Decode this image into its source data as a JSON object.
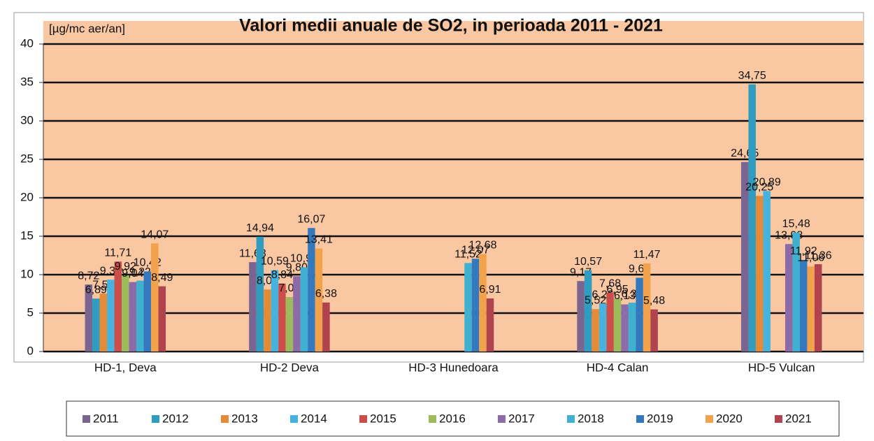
{
  "chart_data": {
    "type": "bar",
    "title": "Valori medii anuale de SO2, in perioada 2011 - 2021",
    "y_label": "[µg/mc aer/an]",
    "categories": [
      "HD-1, Deva",
      "HD-2 Deva",
      "HD-3 Hunedoara",
      "HD-4 Calan",
      "HD-5 Vulcan"
    ],
    "ylim": [
      0,
      40
    ],
    "yticks": [
      0,
      5,
      10,
      15,
      20,
      25,
      30,
      35,
      40
    ],
    "grid": true,
    "legend": "bottom",
    "series": [
      {
        "name": "2011",
        "color": "#7a6590",
        "values": [
          8.72,
          11.63,
          null,
          9.17,
          24.65
        ],
        "value_labels": [
          "8,72",
          "11,63",
          null,
          "9,17",
          "24,65"
        ]
      },
      {
        "name": "2012",
        "color": "#2f9cc0",
        "values": [
          6.89,
          14.94,
          null,
          10.57,
          34.75
        ],
        "value_labels": [
          "6,89",
          "14,94",
          null,
          "10,57",
          "34,75"
        ]
      },
      {
        "name": "2013",
        "color": "#e58a37",
        "values": [
          7.53,
          8.07,
          null,
          5.52,
          20.25
        ],
        "value_labels": [
          "7,53",
          "8,07",
          null,
          "5,52",
          "20,25"
        ]
      },
      {
        "name": "2014",
        "color": "#46b3de",
        "values": [
          9.35,
          10.59,
          null,
          6.26,
          20.89
        ],
        "value_labels": [
          "9,35",
          "10,59",
          null,
          "6,26",
          "20,89"
        ]
      },
      {
        "name": "2015",
        "color": "#cc4e4a",
        "values": [
          11.71,
          8.84,
          null,
          7.68,
          null
        ],
        "value_labels": [
          "11,71",
          "8,84",
          null,
          "7,68",
          null
        ]
      },
      {
        "name": "2016",
        "color": "#9dbb5b",
        "values": [
          9.92,
          7.09,
          null,
          6.95,
          null
        ],
        "value_labels": [
          "9,92",
          "7,09",
          null,
          "6,95",
          null
        ]
      },
      {
        "name": "2017",
        "color": "#8d6aa8",
        "values": [
          9.04,
          9.8,
          null,
          6.13,
          13.98
        ],
        "value_labels": [
          "9,04",
          "9,80",
          null,
          "6,13",
          "13,98"
        ]
      },
      {
        "name": "2018",
        "color": "#3fb0cf",
        "values": [
          9.22,
          10.96,
          11.52,
          6.36,
          15.48
        ],
        "value_labels": [
          "9,22",
          "10,96",
          "11,52",
          "6,36",
          "15,48"
        ]
      },
      {
        "name": "2019",
        "color": "#3479bd",
        "values": [
          10.42,
          16.07,
          12.07,
          9.6,
          11.92
        ],
        "value_labels": [
          "10,42",
          "16,07",
          "12,07",
          "9,60",
          "11,92"
        ]
      },
      {
        "name": "2020",
        "color": "#f3a24c",
        "values": [
          14.07,
          13.41,
          12.68,
          11.47,
          11.06
        ],
        "value_labels": [
          "14,07",
          "13,41",
          "12,68",
          "11,47",
          "11,06"
        ]
      },
      {
        "name": "2021",
        "color": "#b0434d",
        "values": [
          8.49,
          6.38,
          6.91,
          5.48,
          11.36
        ],
        "value_labels": [
          "8,49",
          "6,38",
          "6,91",
          "5,48",
          "11,36"
        ]
      }
    ]
  }
}
